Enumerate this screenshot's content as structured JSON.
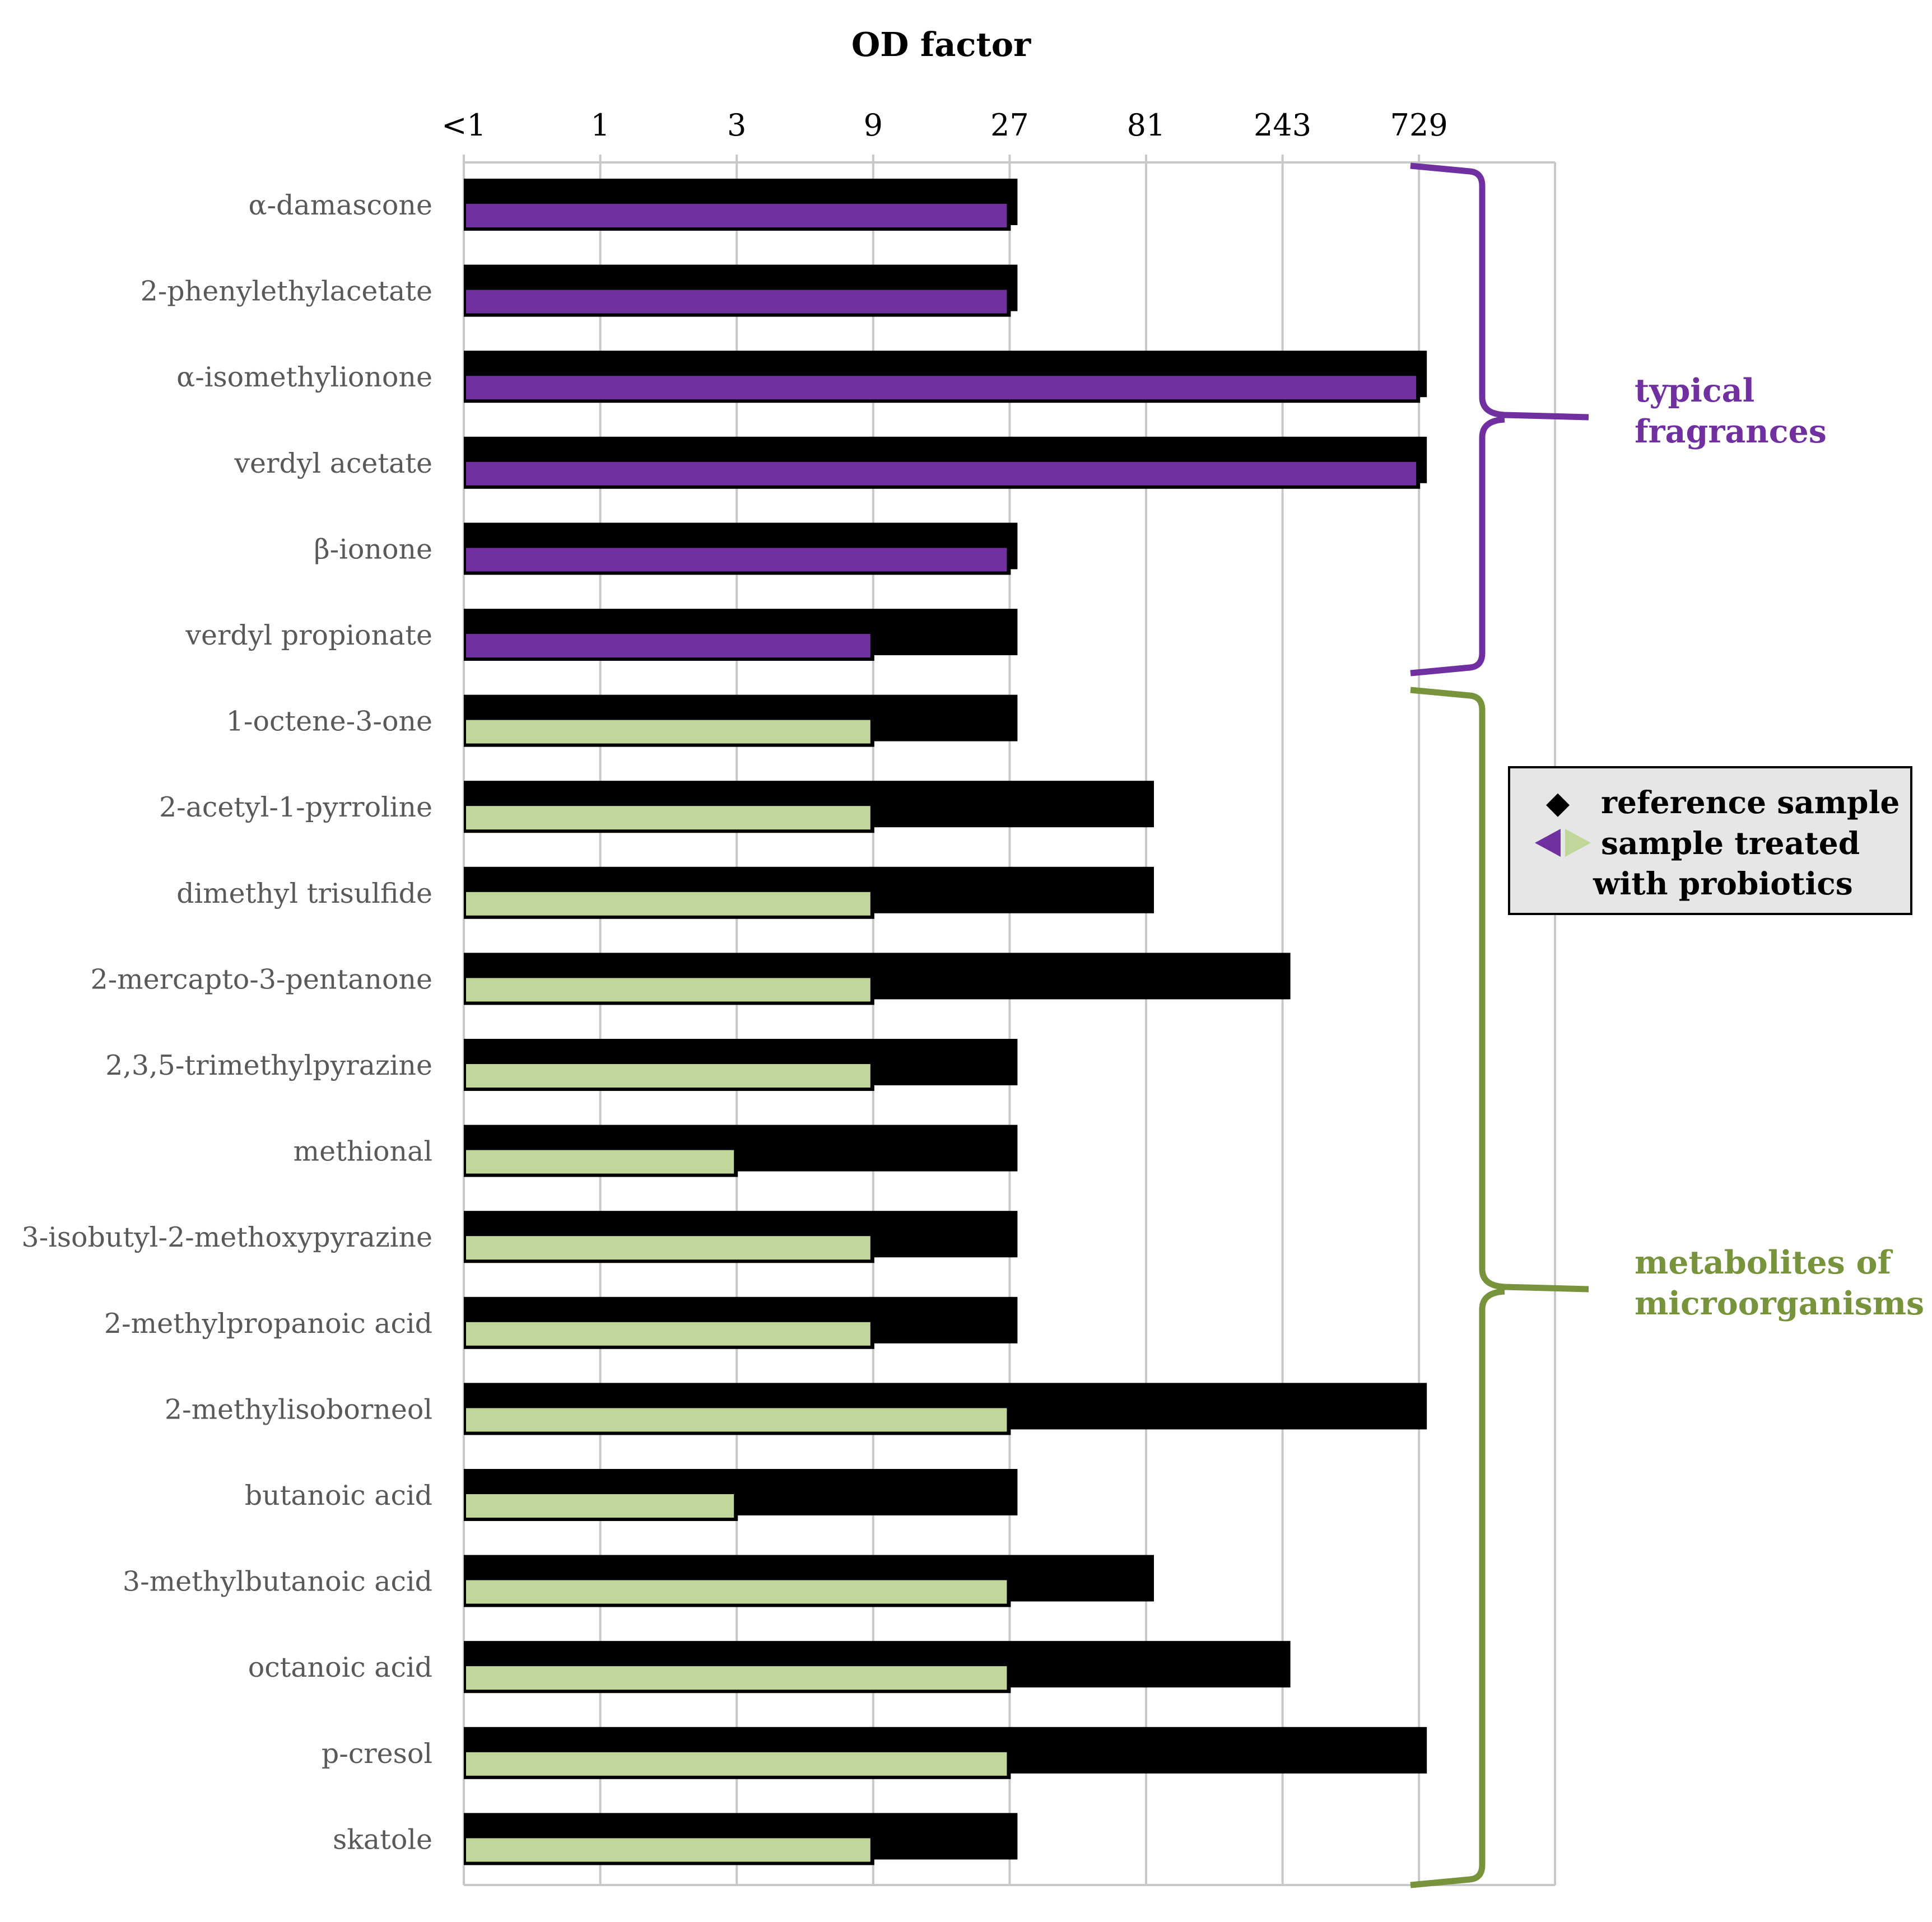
{
  "chart_data": {
    "type": "bar",
    "orientation": "horizontal",
    "title": "OD factor",
    "xaxis": {
      "scale": "log3",
      "ticks": [
        "<1",
        "1",
        "3",
        "9",
        "27",
        "81",
        "243",
        "729"
      ],
      "tick_values": [
        0,
        1,
        3,
        9,
        27,
        81,
        243,
        729
      ],
      "grid": true
    },
    "categories": [
      "α-damascone",
      "2-phenylethylacetate",
      "α-isomethylionone",
      "verdyl acetate",
      "β-ionone",
      "verdyl propionate",
      "1-octene-3-one",
      "2-acetyl-1-pyrroline",
      "dimethyl trisulfide",
      "2-mercapto-3-pentanone",
      "2,3,5-trimethylpyrazine",
      "methional",
      "3-isobutyl-2-methoxypyrazine",
      "2-methylpropanoic acid",
      "2-methylisoborneol",
      "butanoic acid",
      "3-methylbutanoic acid",
      "octanoic acid",
      "p-cresol",
      "skatole"
    ],
    "series": [
      {
        "name": "reference sample",
        "color": "#000000",
        "values": [
          27,
          27,
          729,
          729,
          27,
          27,
          27,
          81,
          81,
          243,
          27,
          27,
          27,
          27,
          729,
          27,
          81,
          243,
          729,
          27
        ]
      },
      {
        "name": "sample treated with probiotics",
        "colors": {
          "typical fragrances": "#7030A0",
          "metabolites of microorganisms": "#C0D69B"
        },
        "values": [
          27,
          27,
          729,
          729,
          27,
          9,
          9,
          9,
          9,
          9,
          9,
          3,
          9,
          9,
          27,
          3,
          27,
          27,
          27,
          9
        ]
      }
    ],
    "groups": [
      {
        "label_lines": [
          "typical",
          "fragrances"
        ],
        "color": "#7030A0",
        "from_index": 0,
        "to_index": 5
      },
      {
        "label_lines": [
          "metabolites of",
          "microorganisms"
        ],
        "color": "#77933C",
        "from_index": 6,
        "to_index": 19
      }
    ],
    "legend": {
      "position": "right",
      "background": "#E6E6E6",
      "entries": [
        {
          "symbol": "◆",
          "label_lines": [
            "reference sample"
          ]
        },
        {
          "symbol": "◀▶",
          "label_lines": [
            "sample treated",
            "with probiotics"
          ]
        }
      ]
    }
  }
}
